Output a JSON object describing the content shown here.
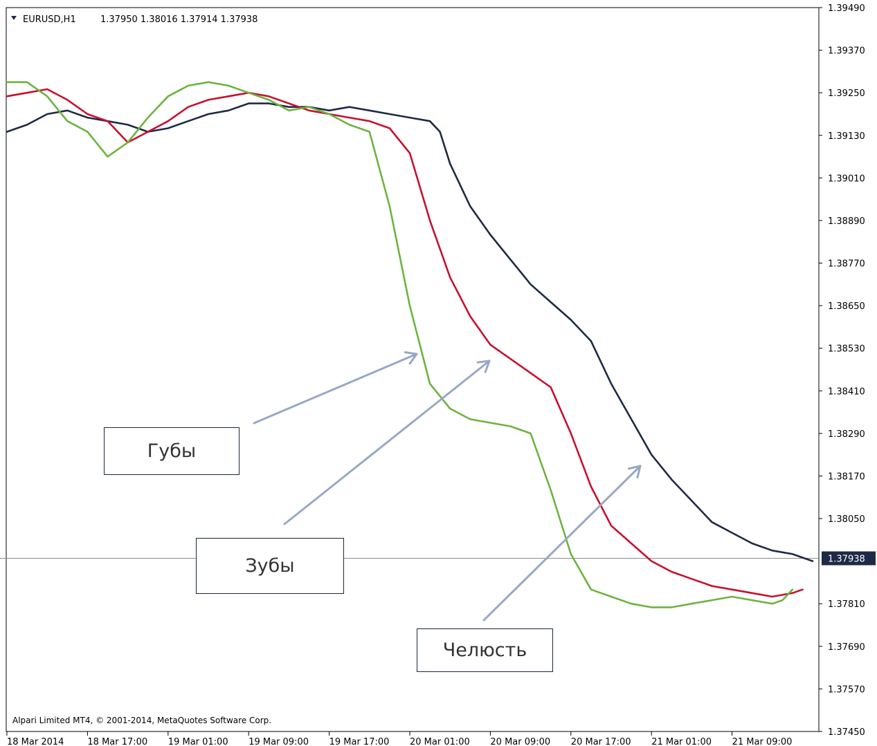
{
  "header": {
    "symbol": "EURUSD,H1",
    "ohlc": "1.37950 1.38016 1.37914 1.37938"
  },
  "copyright": "Alpari Limited MT4, © 2001-2014, MetaQuotes Software Corp.",
  "annotations": {
    "lips": "Губы",
    "teeth": "Зубы",
    "jaw": "Челюсть"
  },
  "colors": {
    "jaw": "#1e2a45",
    "teeth": "#c8102e",
    "lips": "#6cb33f",
    "price_line": "#8a8a8a",
    "arrow": "#98a8c4",
    "frame": "#000000"
  },
  "chart_data": {
    "type": "line",
    "ylim": [
      1.3745,
      1.3949
    ],
    "xlim": [
      0,
      80
    ],
    "y_ticks": [
      "1.39490",
      "1.39370",
      "1.39250",
      "1.39130",
      "1.39010",
      "1.38890",
      "1.38770",
      "1.38650",
      "1.38530",
      "1.38410",
      "1.38290",
      "1.38170",
      "1.38050",
      "1.37810",
      "1.37690",
      "1.37570",
      "1.37450"
    ],
    "x_ticks": [
      {
        "x": 0,
        "label": "18 Mar 2014"
      },
      {
        "x": 8,
        "label": "18 Mar 17:00"
      },
      {
        "x": 16,
        "label": "19 Mar 01:00"
      },
      {
        "x": 24,
        "label": "19 Mar 09:00"
      },
      {
        "x": 32,
        "label": "19 Mar 17:00"
      },
      {
        "x": 40,
        "label": "20 Mar 01:00"
      },
      {
        "x": 48,
        "label": "20 Mar 09:00"
      },
      {
        "x": 56,
        "label": "20 Mar 17:00"
      },
      {
        "x": 64,
        "label": "21 Mar 01:00"
      },
      {
        "x": 72,
        "label": "21 Mar 09:00"
      }
    ],
    "current_price": {
      "value": 1.37938,
      "label": "1.37938"
    },
    "series": [
      {
        "key": "jaw",
        "points": [
          [
            0,
            1.3914
          ],
          [
            2,
            1.3916
          ],
          [
            4,
            1.3919
          ],
          [
            6,
            1.392
          ],
          [
            8,
            1.3918
          ],
          [
            10,
            1.3917
          ],
          [
            12,
            1.3916
          ],
          [
            14,
            1.3914
          ],
          [
            16,
            1.3915
          ],
          [
            18,
            1.3917
          ],
          [
            20,
            1.3919
          ],
          [
            22,
            1.392
          ],
          [
            24,
            1.3922
          ],
          [
            26,
            1.3922
          ],
          [
            28,
            1.3921
          ],
          [
            30,
            1.3921
          ],
          [
            32,
            1.392
          ],
          [
            34,
            1.3921
          ],
          [
            36,
            1.392
          ],
          [
            38,
            1.3919
          ],
          [
            40,
            1.3918
          ],
          [
            42,
            1.3917
          ],
          [
            43,
            1.3914
          ],
          [
            44,
            1.3905
          ],
          [
            46,
            1.3893
          ],
          [
            48,
            1.3885
          ],
          [
            50,
            1.3878
          ],
          [
            52,
            1.3871
          ],
          [
            54,
            1.3866
          ],
          [
            56,
            1.3861
          ],
          [
            58,
            1.3855
          ],
          [
            60,
            1.3843
          ],
          [
            62,
            1.3833
          ],
          [
            64,
            1.3823
          ],
          [
            66,
            1.3816
          ],
          [
            68,
            1.381
          ],
          [
            70,
            1.3804
          ],
          [
            72,
            1.3801
          ],
          [
            74,
            1.3798
          ],
          [
            76,
            1.3796
          ],
          [
            78,
            1.3795
          ],
          [
            80,
            1.3793
          ]
        ]
      },
      {
        "key": "teeth",
        "points": [
          [
            0,
            1.3924
          ],
          [
            2,
            1.3925
          ],
          [
            4,
            1.3926
          ],
          [
            6,
            1.3923
          ],
          [
            8,
            1.3919
          ],
          [
            10,
            1.3917
          ],
          [
            12,
            1.3911
          ],
          [
            14,
            1.3914
          ],
          [
            16,
            1.3917
          ],
          [
            18,
            1.3921
          ],
          [
            20,
            1.3923
          ],
          [
            22,
            1.3924
          ],
          [
            24,
            1.3925
          ],
          [
            26,
            1.3924
          ],
          [
            28,
            1.3922
          ],
          [
            30,
            1.392
          ],
          [
            32,
            1.3919
          ],
          [
            34,
            1.3918
          ],
          [
            36,
            1.3917
          ],
          [
            38,
            1.3915
          ],
          [
            40,
            1.3908
          ],
          [
            42,
            1.3889
          ],
          [
            44,
            1.3873
          ],
          [
            46,
            1.3862
          ],
          [
            48,
            1.3854
          ],
          [
            50,
            1.385
          ],
          [
            52,
            1.3846
          ],
          [
            54,
            1.3842
          ],
          [
            56,
            1.3829
          ],
          [
            58,
            1.3814
          ],
          [
            60,
            1.3803
          ],
          [
            62,
            1.3798
          ],
          [
            64,
            1.3793
          ],
          [
            66,
            1.379
          ],
          [
            68,
            1.3788
          ],
          [
            70,
            1.3786
          ],
          [
            72,
            1.3785
          ],
          [
            74,
            1.3784
          ],
          [
            76,
            1.3783
          ],
          [
            78,
            1.3784
          ],
          [
            79,
            1.3785
          ]
        ]
      },
      {
        "key": "lips",
        "points": [
          [
            0,
            1.3928
          ],
          [
            2,
            1.3928
          ],
          [
            4,
            1.3924
          ],
          [
            6,
            1.3917
          ],
          [
            8,
            1.3914
          ],
          [
            10,
            1.3907
          ],
          [
            12,
            1.3911
          ],
          [
            14,
            1.3918
          ],
          [
            16,
            1.3924
          ],
          [
            18,
            1.3927
          ],
          [
            20,
            1.3928
          ],
          [
            22,
            1.3927
          ],
          [
            24,
            1.3925
          ],
          [
            26,
            1.3923
          ],
          [
            28,
            1.392
          ],
          [
            30,
            1.3921
          ],
          [
            32,
            1.3919
          ],
          [
            34,
            1.3916
          ],
          [
            36,
            1.3914
          ],
          [
            38,
            1.3893
          ],
          [
            40,
            1.3865
          ],
          [
            42,
            1.3843
          ],
          [
            44,
            1.3836
          ],
          [
            46,
            1.3833
          ],
          [
            48,
            1.3832
          ],
          [
            50,
            1.3831
          ],
          [
            52,
            1.3829
          ],
          [
            54,
            1.3813
          ],
          [
            56,
            1.3795
          ],
          [
            58,
            1.3785
          ],
          [
            60,
            1.3783
          ],
          [
            62,
            1.3781
          ],
          [
            64,
            1.378
          ],
          [
            66,
            1.378
          ],
          [
            68,
            1.3781
          ],
          [
            70,
            1.3782
          ],
          [
            72,
            1.3783
          ],
          [
            74,
            1.3782
          ],
          [
            76,
            1.3781
          ],
          [
            77,
            1.3782
          ],
          [
            78,
            1.3785
          ]
        ]
      }
    ]
  }
}
